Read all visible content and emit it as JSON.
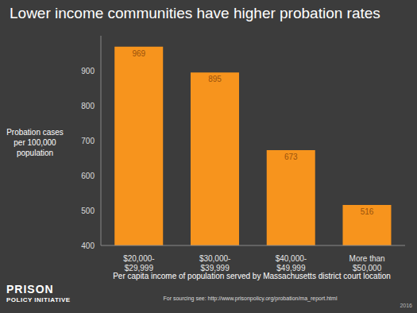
{
  "chart_data": {
    "type": "bar",
    "title": "Lower income communities have higher probation rates",
    "y_label": "Probation cases per 100,000 population",
    "x_label": "Per capita income of population served by Massachusetts district court location",
    "categories": [
      "$20,000-$29,999",
      "$30,000-$39,999",
      "$40,000-$49,999",
      "More than $50,000"
    ],
    "values": [
      969,
      895,
      673,
      516
    ],
    "color": "#f7941d",
    "ylim": [
      400,
      1000
    ],
    "yticks": [
      400,
      500,
      600,
      700,
      800,
      900
    ],
    "grid": false,
    "data_labels": true,
    "source": "For sourcing see: http://www.prisonpolicy.org/probation/ma_report.html",
    "publisher": "PRISON POLICY INITIATIVE",
    "year": "2016"
  }
}
